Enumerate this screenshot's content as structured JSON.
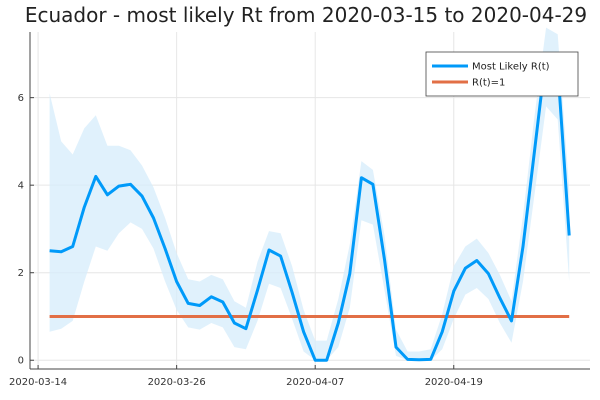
{
  "chart_data": {
    "type": "line",
    "title": "Ecuador - most likely Rt from 2020-03-15 to 2020-04-29",
    "xlabel": "",
    "ylabel": "",
    "x_start": "2020-03-15",
    "x_ticks": [
      "2020-03-14",
      "2020-03-26",
      "2020-04-07",
      "2020-04-19"
    ],
    "y_ticks": [
      0,
      2,
      4,
      6
    ],
    "ylim": [
      -0.2,
      7.5
    ],
    "grid": true,
    "legend_position": "top-right",
    "colors": {
      "rt": "#009af9",
      "band": "#d6ecfb",
      "ref": "#e26f46"
    },
    "series": [
      {
        "name": "Most Likely R(t)",
        "x": [
          "2020-03-15",
          "2020-03-16",
          "2020-03-17",
          "2020-03-18",
          "2020-03-19",
          "2020-03-20",
          "2020-03-21",
          "2020-03-22",
          "2020-03-23",
          "2020-03-24",
          "2020-03-25",
          "2020-03-26",
          "2020-03-27",
          "2020-03-28",
          "2020-03-29",
          "2020-03-30",
          "2020-03-31",
          "2020-04-01",
          "2020-04-02",
          "2020-04-03",
          "2020-04-04",
          "2020-04-05",
          "2020-04-06",
          "2020-04-07",
          "2020-04-08",
          "2020-04-09",
          "2020-04-10",
          "2020-04-11",
          "2020-04-12",
          "2020-04-13",
          "2020-04-14",
          "2020-04-15",
          "2020-04-16",
          "2020-04-17",
          "2020-04-18",
          "2020-04-19",
          "2020-04-20",
          "2020-04-21",
          "2020-04-22",
          "2020-04-23",
          "2020-04-24",
          "2020-04-25",
          "2020-04-26",
          "2020-04-27",
          "2020-04-28",
          "2020-04-29"
        ],
        "values": [
          2.5,
          2.48,
          2.6,
          3.5,
          4.2,
          3.78,
          3.98,
          4.02,
          3.75,
          3.25,
          2.55,
          1.8,
          1.3,
          1.25,
          1.45,
          1.33,
          0.85,
          0.72,
          1.6,
          2.52,
          2.38,
          1.55,
          0.65,
          0.0,
          0.0,
          0.85,
          1.98,
          4.17,
          4.02,
          2.3,
          0.3,
          0.02,
          0.01,
          0.02,
          0.65,
          1.58,
          2.1,
          2.28,
          1.98,
          1.42,
          0.9,
          2.6,
          4.8,
          7.0,
          6.7,
          2.85
        ],
        "lower": [
          0.65,
          0.72,
          0.9,
          1.8,
          2.6,
          2.5,
          2.9,
          3.15,
          3.0,
          2.55,
          1.8,
          1.15,
          0.75,
          0.7,
          0.85,
          0.75,
          0.3,
          0.25,
          0.9,
          1.75,
          1.65,
          0.95,
          0.2,
          0.0,
          0.0,
          0.3,
          1.2,
          3.2,
          3.1,
          1.6,
          0.1,
          0.0,
          0.0,
          0.0,
          0.25,
          0.95,
          1.5,
          1.65,
          1.4,
          0.85,
          0.4,
          1.8,
          3.8,
          5.8,
          5.5,
          1.8
        ],
        "upper": [
          6.1,
          5.0,
          4.7,
          5.3,
          5.6,
          4.9,
          4.9,
          4.8,
          4.45,
          3.95,
          3.25,
          2.45,
          1.85,
          1.8,
          1.95,
          1.85,
          1.35,
          1.2,
          2.25,
          2.95,
          2.9,
          2.15,
          1.15,
          0.45,
          0.45,
          1.4,
          2.65,
          4.55,
          4.35,
          2.85,
          0.7,
          0.2,
          0.2,
          0.25,
          1.05,
          2.15,
          2.6,
          2.78,
          2.45,
          1.95,
          1.35,
          3.3,
          5.6,
          7.6,
          7.45,
          3.9
        ]
      },
      {
        "name": "R(t)=1",
        "x": [
          "2020-03-15",
          "2020-04-29"
        ],
        "values": [
          1,
          1
        ]
      }
    ]
  }
}
